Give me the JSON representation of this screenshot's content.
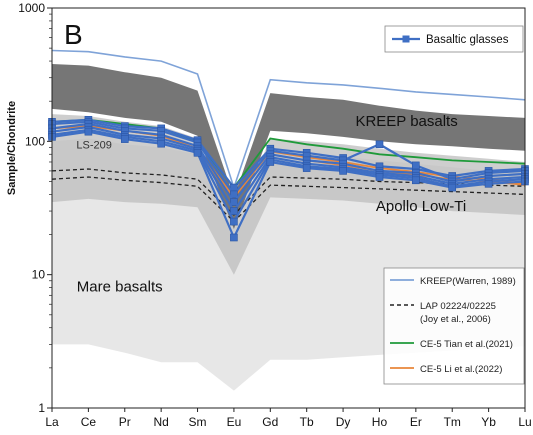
{
  "chart_data": {
    "type": "line",
    "panel_label": "B",
    "ylabel": "Sample/Chondrite",
    "yscale": "log",
    "ylim": [
      1,
      1000
    ],
    "y_ticks": [
      "1",
      "10",
      "100",
      "1000"
    ],
    "categories": [
      "La",
      "Ce",
      "Pr",
      "Nd",
      "Sm",
      "Eu",
      "Gd",
      "Tb",
      "Dy",
      "Ho",
      "Er",
      "Tm",
      "Yb",
      "Lu"
    ],
    "colors": {
      "basaltic_glasses": "#3f6fc4",
      "kreep_warren": "#7fa3d8",
      "ce5_tian": "#1f9a3a",
      "ce5_li": "#e8863a",
      "lap": "#222222",
      "kreep_band": "#6f6f6f",
      "low_ti_band": "#bdbdbd",
      "mare_band": "#e4e4e4"
    },
    "fields": [
      {
        "label": "KREEP basalts",
        "upper": [
          380,
          370,
          330,
          300,
          240,
          38,
          230,
          215,
          205,
          185,
          170,
          160,
          155,
          150
        ],
        "lower": [
          175,
          165,
          150,
          140,
          110,
          22,
          120,
          115,
          108,
          100,
          95,
          92,
          88,
          85
        ]
      },
      {
        "label": "Apollo Low-Ti",
        "upper": [
          160,
          155,
          140,
          130,
          105,
          24,
          105,
          100,
          95,
          88,
          82,
          78,
          74,
          70
        ],
        "lower": [
          35,
          37,
          35,
          34,
          32,
          10,
          38,
          37,
          36,
          34,
          32,
          30,
          29,
          28
        ]
      },
      {
        "label": "Mare basalts",
        "upper": [
          100,
          105,
          95,
          90,
          80,
          18,
          85,
          80,
          77,
          72,
          68,
          64,
          60,
          58
        ],
        "lower": [
          3,
          3,
          2.6,
          2.2,
          2.2,
          1.35,
          2.3,
          2.3,
          2.4,
          2.5,
          2.6,
          2.7,
          2.8,
          2.9
        ]
      }
    ],
    "series": [
      {
        "name": "KREEP(Warren, 1989)",
        "values": [
          480,
          470,
          430,
          400,
          320,
          45,
          290,
          275,
          265,
          250,
          235,
          225,
          215,
          205
        ]
      },
      {
        "name": "LAP 02224/02225",
        "values": [
          60,
          62,
          58,
          56,
          52,
          28,
          54,
          53,
          52,
          50,
          49,
          48,
          47,
          46
        ]
      },
      {
        "name": "LAP 02224/02225",
        "values": [
          52,
          54,
          51,
          49,
          46,
          25,
          47,
          46,
          45,
          44,
          43,
          42,
          41,
          40
        ]
      },
      {
        "name": "CE-5 Tian et al.(2021)",
        "values": [
          140,
          145,
          135,
          125,
          100,
          45,
          105,
          95,
          88,
          80,
          76,
          72,
          70,
          68
        ]
      },
      {
        "name": "CE-5 Li et al.(2022)",
        "values": [
          125,
          130,
          120,
          110,
          88,
          38,
          84,
          76,
          70,
          63,
          59,
          54,
          52,
          48
        ]
      },
      {
        "name": "",
        "values": [
          125,
          130,
          120,
          110,
          88,
          35,
          80,
          72,
          66,
          60,
          56,
          52,
          50,
          47
        ]
      }
    ],
    "basaltic_glasses": {
      "name": "Basaltic glasses",
      "profiles": [
        [
          140,
          145,
          130,
          125,
          102,
          45,
          88,
          82,
          75,
          65,
          62,
          55,
          60,
          62
        ],
        [
          135,
          140,
          125,
          120,
          98,
          40,
          85,
          78,
          72,
          95,
          66,
          52,
          58,
          60
        ],
        [
          125,
          135,
          120,
          112,
          92,
          35,
          80,
          72,
          68,
          60,
          58,
          50,
          55,
          57
        ],
        [
          118,
          128,
          112,
          105,
          88,
          30,
          76,
          68,
          64,
          58,
          55,
          48,
          52,
          54
        ],
        [
          112,
          122,
          108,
          100,
          85,
          25,
          73,
          65,
          62,
          56,
          53,
          46,
          50,
          52
        ],
        [
          108,
          118,
          104,
          96,
          82,
          19,
          70,
          63,
          60,
          54,
          51,
          45,
          48,
          50
        ]
      ]
    },
    "annotations": [
      {
        "text": "LS-209",
        "at": "Ce",
        "value": 88
      },
      {
        "text": "KREEP basalts",
        "at": "Ho",
        "value": 130
      },
      {
        "text": "Apollo Low-Ti",
        "at": "Er",
        "value": 30
      },
      {
        "text": "Mare basalts",
        "at": "Pr",
        "value": 7.5
      }
    ],
    "legend": {
      "top": {
        "label": "Basaltic glasses"
      },
      "bottom": [
        {
          "key": "kreep_warren",
          "style": "solid",
          "lines": [
            "KREEP(Warren, 1989)"
          ]
        },
        {
          "key": "lap",
          "style": "dashed",
          "lines": [
            "LAP 02224/02225",
            "(Joy et al., 2006)"
          ]
        },
        {
          "key": "ce5_tian",
          "style": "solid",
          "lines": [
            "CE-5 Tian et al.(2021)"
          ]
        },
        {
          "key": "ce5_li",
          "style": "solid",
          "lines": [
            "CE-5 Li et al.(2022)"
          ]
        }
      ]
    }
  }
}
